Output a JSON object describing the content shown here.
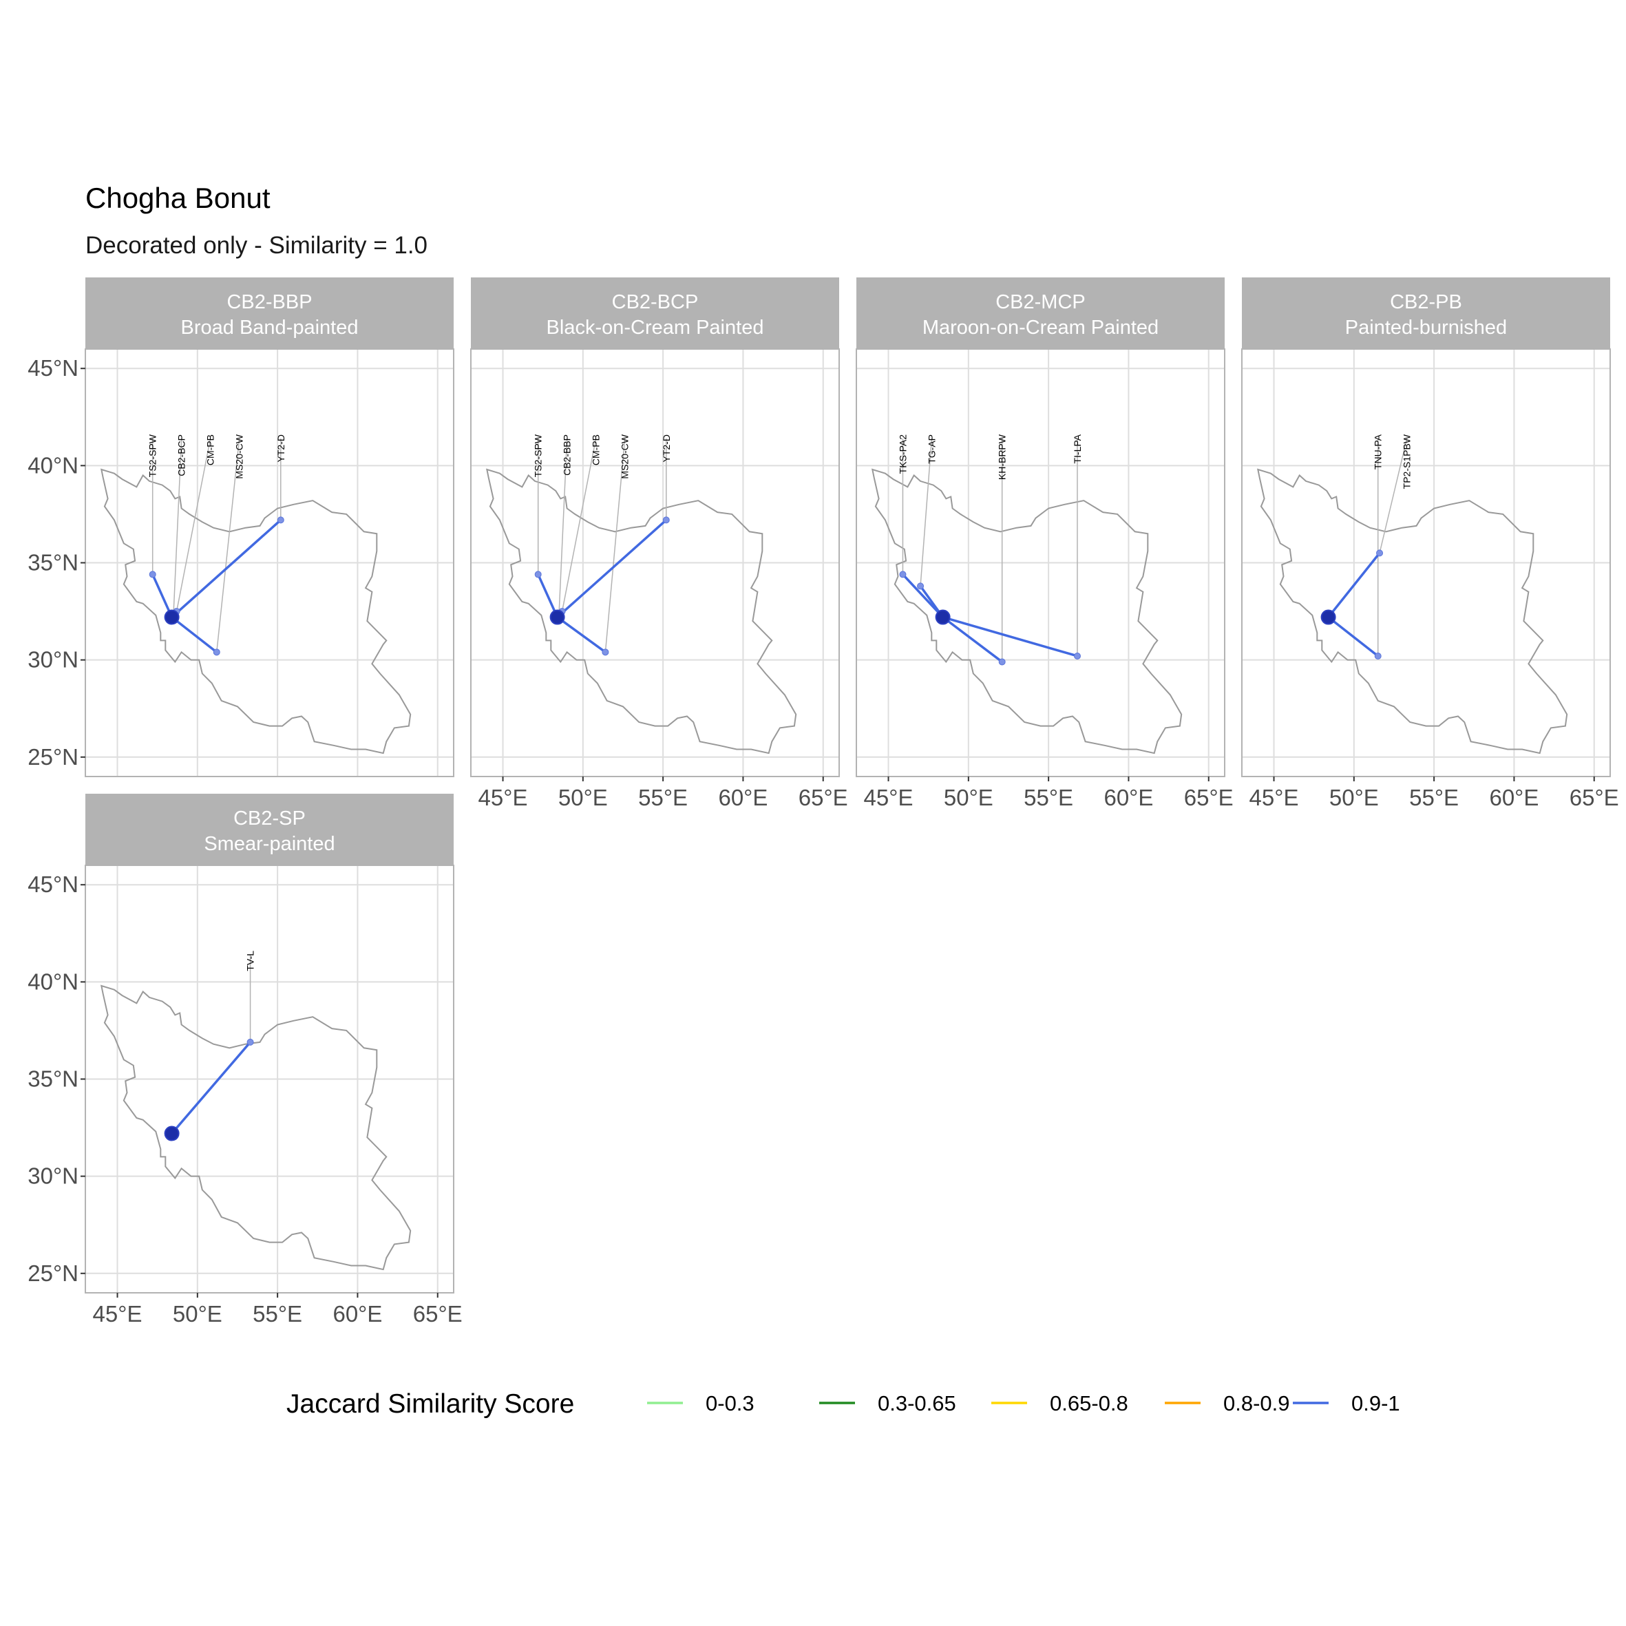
{
  "title": "Chogha Bonut",
  "subtitle": "Decorated only - Similarity = 1.0",
  "chart_data": {
    "type": "map",
    "map_region": "Iran outline",
    "grid": true,
    "x_axis": {
      "ticks": [
        45,
        50,
        55,
        60,
        65
      ],
      "tick_labels": [
        "45°E",
        "50°E",
        "55°E",
        "60°E",
        "65°E"
      ],
      "range": [
        43,
        66
      ]
    },
    "y_axis": {
      "ticks": [
        25,
        30,
        35,
        40,
        45
      ],
      "tick_labels": [
        "25°N",
        "30°N",
        "35°N",
        "40°N",
        "45°N"
      ],
      "range": [
        24,
        46
      ]
    },
    "origin_site": {
      "lon": 48.4,
      "lat": 32.2
    },
    "panels": [
      {
        "code": "CB2-BBP",
        "name": "Broad Band-painted",
        "sites": [
          {
            "label": "TS2-SPW",
            "lon": 47.2,
            "lat": 34.4,
            "category": "0.9-1"
          },
          {
            "label": "CB2-BCP",
            "lon": 48.5,
            "lat": 32.3,
            "category": "0.9-1"
          },
          {
            "label": "CM-PB",
            "lon": 48.7,
            "lat": 32.5,
            "category": "0.9-1"
          },
          {
            "label": "MS20-CW",
            "lon": 51.2,
            "lat": 30.4,
            "category": "0.9-1"
          },
          {
            "label": "YT2-D",
            "lon": 55.2,
            "lat": 37.2,
            "category": "0.9-1"
          }
        ]
      },
      {
        "code": "CB2-BCP",
        "name": "Black-on-Cream Painted",
        "sites": [
          {
            "label": "TS2-SPW",
            "lon": 47.2,
            "lat": 34.4,
            "category": "0.9-1"
          },
          {
            "label": "CB2-BBP",
            "lon": 48.5,
            "lat": 32.3,
            "category": "0.9-1"
          },
          {
            "label": "CM-PB",
            "lon": 48.7,
            "lat": 32.5,
            "category": "0.9-1"
          },
          {
            "label": "MS20-CW",
            "lon": 51.4,
            "lat": 30.4,
            "category": "0.9-1"
          },
          {
            "label": "YT2-D",
            "lon": 55.2,
            "lat": 37.2,
            "category": "0.9-1"
          }
        ]
      },
      {
        "code": "CB2-MCP",
        "name": "Maroon-on-Cream Painted",
        "sites": [
          {
            "label": "TKS-PA2",
            "lon": 45.9,
            "lat": 34.4,
            "category": "0.9-1"
          },
          {
            "label": "TG-AP",
            "lon": 47.0,
            "lat": 33.8,
            "category": "0.9-1"
          },
          {
            "label": "KH-BRPW",
            "lon": 52.1,
            "lat": 29.9,
            "category": "0.9-1"
          },
          {
            "label": "TI-LPA",
            "lon": 56.8,
            "lat": 30.2,
            "category": "0.9-1"
          }
        ]
      },
      {
        "code": "CB2-PB",
        "name": "Painted-burnished",
        "sites": [
          {
            "label": "TNU-PA",
            "lon": 51.5,
            "lat": 30.2,
            "category": "0.9-1"
          },
          {
            "label": "TP2-S1PBW",
            "lon": 51.6,
            "lat": 35.5,
            "category": "0.9-1"
          }
        ]
      },
      {
        "code": "CB2-SP",
        "name": "Smear-painted",
        "sites": [
          {
            "label": "TV-L",
            "lon": 53.3,
            "lat": 36.9,
            "category": "0.9-1"
          }
        ]
      }
    ],
    "legend": {
      "title": "Jaccard Similarity Score",
      "position": "bottom",
      "items": [
        {
          "label": "0-0.3",
          "color": "#90EE90"
        },
        {
          "label": "0.3-0.65",
          "color": "#228B22"
        },
        {
          "label": "0.65-0.8",
          "color": "#FFD700"
        },
        {
          "label": "0.8-0.9",
          "color": "#FFA500"
        },
        {
          "label": "0.9-1",
          "color": "#4169E1"
        }
      ]
    },
    "colors": {
      "origin_point": "#1c2ea8",
      "map_outline": "#999999",
      "strip": "#b3b3b3",
      "grid": "#dedede"
    }
  }
}
